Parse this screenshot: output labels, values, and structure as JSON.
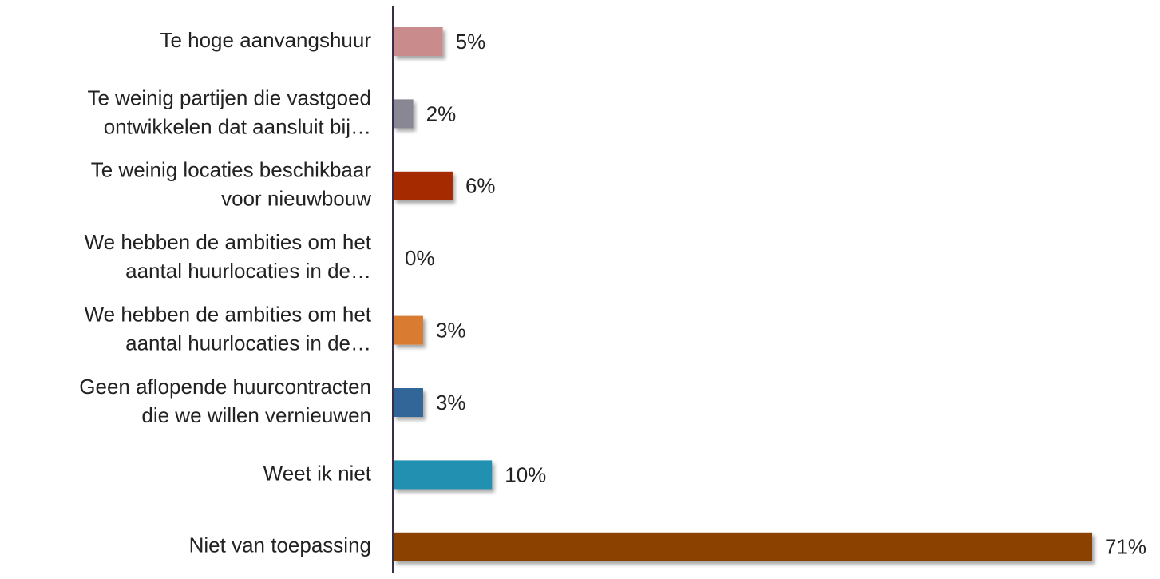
{
  "chart_data": {
    "type": "bar",
    "orientation": "horizontal",
    "categories": [
      [
        "Te hoge aanvangshuur"
      ],
      [
        "Te weinig partijen die vastgoed",
        "ontwikkelen dat aansluit bij…"
      ],
      [
        "Te weinig locaties beschikbaar",
        "voor nieuwbouw"
      ],
      [
        "We hebben de ambities om het",
        "aantal huurlocaties in de…"
      ],
      [
        "We hebben de ambities om het",
        "aantal huurlocaties in de…"
      ],
      [
        "Geen aflopende huurcontracten",
        "die we willen vernieuwen"
      ],
      [
        "Weet ik niet"
      ],
      [
        "Niet van toepassing"
      ]
    ],
    "values": [
      5,
      2,
      6,
      0,
      3,
      3,
      10,
      71
    ],
    "value_labels": [
      "5%",
      "2%",
      "6%",
      "0%",
      "3%",
      "3%",
      "10%",
      "71%"
    ],
    "colors": [
      "#c98b8b",
      "#8a8794",
      "#a52a00",
      "#8a8794",
      "#d97b32",
      "#336699",
      "#2190b0",
      "#8b4306"
    ]
  }
}
